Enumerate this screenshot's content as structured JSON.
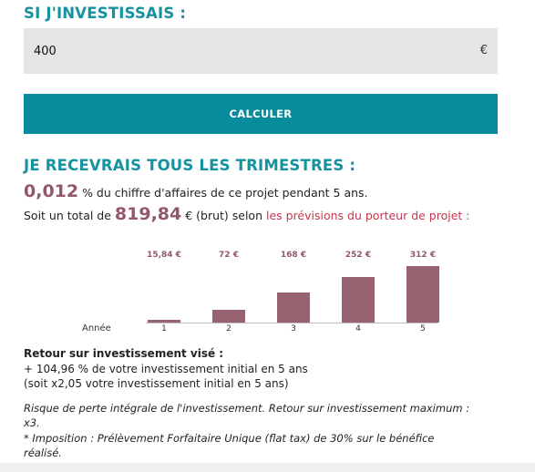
{
  "colors": {
    "teal": "#15929f",
    "button": "#088b9c",
    "bar": "#976370",
    "accent_red": "#c9364a",
    "value": "#935867",
    "input_bg": "#e5e5e5"
  },
  "heading_invest": "SI J'INVESTISSAIS :",
  "input": {
    "value": "400",
    "currency": "€"
  },
  "button_label": "CALCULER",
  "heading_receive": "JE RECEVRAIS TOUS LES TRIMESTRES :",
  "line1": {
    "value": "0,012",
    "text": " % du chiffre d'affaires de ce projet pendant 5 ans."
  },
  "line2": {
    "prefix": "Soit un total de ",
    "value": "819,84",
    "middle": " € (brut) selon ",
    "link": "les prévisions du porteur de projet :"
  },
  "chart_data": {
    "type": "bar",
    "xlabel": "Année",
    "categories": [
      "1",
      "2",
      "3",
      "4",
      "5"
    ],
    "values": [
      15.84,
      72,
      168,
      252,
      312
    ],
    "value_labels": [
      "15,84 €",
      "72 €",
      "168 €",
      "252 €",
      "312 €"
    ],
    "ylim": [
      0,
      312
    ]
  },
  "return": {
    "title": "Retour sur investissement visé :",
    "line1": "+ 104,96 % de votre investissement initial en 5 ans",
    "line2": "(soit x2,05 votre investissement initial en 5 ans)"
  },
  "notes": {
    "risk1": "Risque de perte intégrale de l'investissement. Retour sur investissement maximum :",
    "risk2": "x3.",
    "tax1": "* Imposition : Prélèvement Forfaitaire Unique (flat tax) de 30% sur le bénéfice",
    "tax2": "réalisé."
  }
}
